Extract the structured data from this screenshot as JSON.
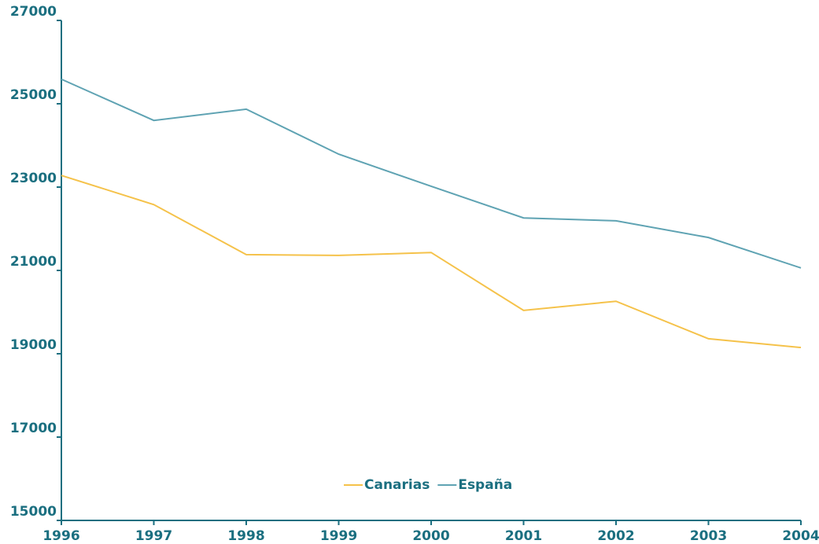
{
  "chart_data": {
    "type": "line",
    "categories": [
      "1996",
      "1997",
      "1998",
      "1999",
      "2000",
      "2001",
      "2002",
      "2003",
      "2004"
    ],
    "series": [
      {
        "name": "Canarias",
        "color": "#f5c24a",
        "values": [
          23280,
          22580,
          21380,
          21360,
          21430,
          20040,
          20260,
          19360,
          19150
        ]
      },
      {
        "name": "España",
        "color": "#5fa3b3",
        "values": [
          25590,
          24600,
          24870,
          23790,
          23020,
          22260,
          22190,
          21790,
          21060
        ]
      }
    ],
    "ylim": [
      15000,
      27000
    ],
    "yticks": [
      15000,
      17000,
      19000,
      21000,
      23000,
      25000,
      27000
    ],
    "grid": false,
    "legend": "lower center"
  }
}
